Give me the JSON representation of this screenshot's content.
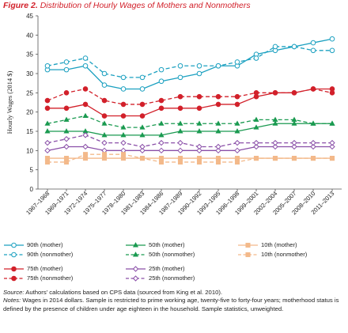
{
  "figure": {
    "label": "Figure 2.",
    "title": "Distribution of Hourly Wages of Mothers and Nonmothers"
  },
  "chart_data": {
    "type": "line",
    "title": "Distribution of Hourly Wages of Mothers and Nonmothers",
    "ylabel": "Hourly Wages (2014 $)",
    "xlabel": "",
    "ylim": [
      0,
      45
    ],
    "yticks": [
      0,
      5,
      10,
      15,
      20,
      25,
      30,
      35,
      40,
      45
    ],
    "grid": false,
    "legend_position": "bottom",
    "categories": [
      "1967–1968",
      "1969–1971",
      "1972–1974",
      "1975–1977",
      "1978–1980",
      "1981–1983",
      "1984–1986",
      "1987–1989",
      "1990–1992",
      "1993–1995",
      "1996–1998",
      "1999–2001",
      "2002–2004",
      "2005–2007",
      "2008–2010",
      "2011–2013"
    ],
    "series": [
      {
        "name": "90th (mother)",
        "color": "#1ba0c0",
        "dashed": false,
        "marker": "circle-open",
        "values": [
          31,
          31,
          32,
          27,
          26,
          26,
          28,
          29,
          30,
          32,
          32,
          35,
          36,
          37,
          38,
          39
        ]
      },
      {
        "name": "90th (nonmother)",
        "color": "#1ba0c0",
        "dashed": true,
        "marker": "circle-open",
        "values": [
          32,
          33,
          34,
          30,
          29,
          29,
          31,
          32,
          32,
          32,
          33,
          34,
          37,
          37,
          36,
          36
        ]
      },
      {
        "name": "75th (mother)",
        "color": "#d2202a",
        "dashed": false,
        "marker": "circle-filled",
        "values": [
          21,
          21,
          22,
          19,
          19,
          19,
          21,
          21,
          21,
          22,
          22,
          24,
          25,
          25,
          26,
          26
        ]
      },
      {
        "name": "75th (nonmother)",
        "color": "#d2202a",
        "dashed": true,
        "marker": "circle-filled",
        "values": [
          23,
          25,
          26,
          23,
          22,
          22,
          23,
          24,
          24,
          24,
          24,
          25,
          25,
          25,
          26,
          25
        ]
      },
      {
        "name": "50th (mother)",
        "color": "#1a9a50",
        "dashed": false,
        "marker": "triangle",
        "values": [
          15,
          15,
          15,
          14,
          14,
          14,
          14,
          15,
          15,
          15,
          15,
          16,
          17,
          17,
          17,
          17
        ]
      },
      {
        "name": "50th (nonmother)",
        "color": "#1a9a50",
        "dashed": true,
        "marker": "triangle",
        "values": [
          17,
          18,
          19,
          17,
          16,
          16,
          17,
          17,
          17,
          17,
          17,
          18,
          18,
          18,
          17,
          17
        ]
      },
      {
        "name": "25th (mother)",
        "color": "#8a4fa8",
        "dashed": false,
        "marker": "diamond-open",
        "values": [
          10,
          11,
          11,
          10,
          10,
          10,
          10,
          10,
          10,
          10,
          10,
          11,
          11,
          11,
          11,
          11
        ]
      },
      {
        "name": "25th (nonmother)",
        "color": "#8a4fa8",
        "dashed": true,
        "marker": "diamond-open",
        "values": [
          12,
          13,
          14,
          12,
          12,
          11,
          12,
          12,
          11,
          11,
          12,
          12,
          12,
          12,
          12,
          12
        ]
      },
      {
        "name": "10th (mother)",
        "color": "#f3b98a",
        "dashed": false,
        "marker": "square",
        "values": [
          8,
          8,
          8,
          8,
          8,
          8,
          8,
          8,
          8,
          8,
          8,
          8,
          8,
          8,
          8,
          8
        ]
      },
      {
        "name": "10th (nonmother)",
        "color": "#f3b98a",
        "dashed": true,
        "marker": "square",
        "values": [
          7,
          7,
          9,
          9,
          9,
          8,
          7,
          7,
          7,
          7,
          7,
          8,
          8,
          8,
          8,
          8
        ]
      }
    ]
  },
  "legend": [
    {
      "label": "90th (mother)",
      "series": 0
    },
    {
      "label": "90th (nonmother)",
      "series": 1
    },
    {
      "label": "75th (mother)",
      "series": 2
    },
    {
      "label": "75th (nonmother)",
      "series": 3
    },
    {
      "label": "50th (mother)",
      "series": 4
    },
    {
      "label": "50th (nonmother)",
      "series": 5
    },
    {
      "label": "25th (mother)",
      "series": 6
    },
    {
      "label": "25th (nonmother)",
      "series": 7
    },
    {
      "label": "10th (mother)",
      "series": 8
    },
    {
      "label": "10th (nonmother)",
      "series": 9
    }
  ],
  "source": {
    "label": "Source:",
    "text": "Authors’ calculations based on CPS data (sourced from King et al. 2010)."
  },
  "notes": {
    "label": "Notes:",
    "text": "Wages in 2014 dollars. Sample is restricted to prime working age, twenty-five to forty-four years; motherhood status is defined by the presence of children under age eighteen in the household. Sample statistics, unweighted."
  }
}
